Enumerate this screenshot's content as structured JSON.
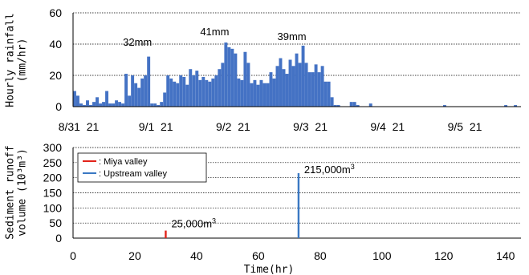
{
  "chart_data": [
    {
      "type": "bar",
      "ylabel": "Hourly rainfall\n(mm/hr)",
      "ylim": [
        0,
        60
      ],
      "yticks": [
        0,
        20,
        40,
        60
      ],
      "xticks": [
        "8/31  21",
        "9/1  21",
        "9/2  21",
        "9/3  21",
        "9/4  21",
        "9/5  21"
      ],
      "grid": "horizontal dotted",
      "annotations": [
        {
          "text": "32mm",
          "hour": 23
        },
        {
          "text": "41mm",
          "hour": 47
        },
        {
          "text": "39mm",
          "hour": 71
        }
      ],
      "series": [
        {
          "color": "#4472c4",
          "values": [
            10,
            7,
            2,
            1,
            4,
            1,
            3,
            6,
            2,
            3,
            10,
            2,
            2,
            4,
            3,
            2,
            21,
            7,
            20,
            15,
            12,
            18,
            20,
            32,
            2,
            2,
            1,
            3,
            9,
            20,
            18,
            16,
            15,
            20,
            19,
            14,
            24,
            20,
            23,
            17,
            19,
            17,
            16,
            18,
            20,
            24,
            28,
            41,
            38,
            37,
            34,
            18,
            17,
            35,
            28,
            15,
            17,
            14,
            17,
            15,
            15,
            22,
            18,
            26,
            31,
            24,
            21,
            30,
            26,
            34,
            28,
            39,
            28,
            22,
            22,
            27,
            22,
            26,
            16,
            16,
            6,
            1,
            1,
            0,
            0,
            0,
            3,
            3,
            1,
            0,
            0,
            0,
            2,
            0,
            0,
            0,
            0,
            0,
            0,
            0,
            0,
            0,
            0,
            0,
            0,
            0,
            0,
            0,
            0,
            0,
            0,
            0,
            0,
            0,
            0,
            1,
            0,
            0,
            0,
            0,
            0,
            0,
            0,
            0,
            0,
            0,
            0,
            0,
            0,
            0,
            0,
            0,
            0,
            0,
            1,
            0,
            0,
            1,
            0,
            0,
            0,
            0,
            0,
            0,
            0,
            0,
            0,
            0,
            0,
            0
          ]
        }
      ]
    },
    {
      "type": "bar",
      "xlabel": "Time(hr)",
      "ylabel": "Sediment runoff\nvolume (10³m³)",
      "xlim": [
        0,
        145
      ],
      "ylim": [
        0,
        300
      ],
      "xticks": [
        0,
        20,
        40,
        60,
        80,
        100,
        120,
        140
      ],
      "yticks": [
        0,
        50,
        100,
        150,
        200,
        250,
        300
      ],
      "grid": "horizontal dotted",
      "legend_position": "top-left",
      "series": [
        {
          "name": ": Miya valley",
          "color": "#e2231a",
          "x": 30,
          "value": 25,
          "label": "25,000m³"
        },
        {
          "name": ": Upstream valley",
          "color": "#3a78c3",
          "x": 73,
          "value": 215,
          "label": "215,000m³"
        }
      ]
    }
  ]
}
